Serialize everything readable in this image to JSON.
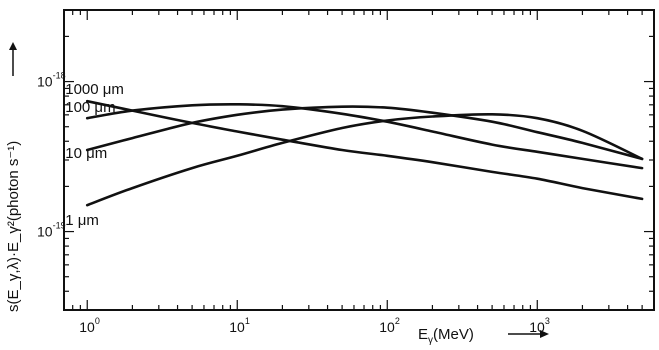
{
  "chart_data": {
    "type": "line",
    "x_scale": "log",
    "y_scale": "log",
    "xlim": [
      0.7,
      6000
    ],
    "ylim": [
      3e-20,
      3e-18
    ],
    "xlabel": "E_γ(MeV)",
    "xlabel_parts": {
      "base": "E",
      "sub": "γ",
      "rest": "(MeV)"
    },
    "ylabel": "s(E_γ,λ)·E_γ²(photon s⁻¹)",
    "x_ticks": [
      {
        "value": 1,
        "base": "10",
        "exp": "0"
      },
      {
        "value": 10,
        "base": "10",
        "exp": "1"
      },
      {
        "value": 100,
        "base": "10",
        "exp": "2"
      },
      {
        "value": 1000,
        "base": "10",
        "exp": "3"
      }
    ],
    "y_ticks": [
      {
        "value": 1e-19,
        "base": "10",
        "exp": "-19"
      },
      {
        "value": 1e-18,
        "base": "10",
        "exp": "-18"
      }
    ],
    "grid": false,
    "series": [
      {
        "name": "1000 μm",
        "label": "1000 μm",
        "x": [
          1,
          2,
          5,
          10,
          20,
          50,
          100,
          200,
          500,
          1000,
          2000,
          5000
        ],
        "y": [
          7.4e-19,
          6.4e-19,
          5.3e-19,
          4.65e-19,
          4.1e-19,
          3.5e-19,
          3.2e-19,
          2.9e-19,
          2.5e-19,
          2.25e-19,
          1.95e-19,
          1.65e-19
        ]
      },
      {
        "name": "100 μm",
        "label": "100 μm",
        "x": [
          1,
          2,
          5,
          10,
          20,
          50,
          100,
          200,
          500,
          1000,
          2000,
          5000
        ],
        "y": [
          5.7e-19,
          6.4e-19,
          6.95e-19,
          7.05e-19,
          6.85e-19,
          6.1e-19,
          5.4e-19,
          4.65e-19,
          3.8e-19,
          3.4e-19,
          3.05e-19,
          2.65e-19
        ]
      },
      {
        "name": "10 μm",
        "label": "10 μm",
        "x": [
          1,
          2,
          5,
          10,
          20,
          50,
          100,
          200,
          500,
          1000,
          2000,
          5000
        ],
        "y": [
          3.5e-19,
          4.2e-19,
          5.3e-19,
          6e-19,
          6.5e-19,
          6.8e-19,
          6.7e-19,
          6.2e-19,
          5.4e-19,
          4.6e-19,
          3.9e-19,
          3.05e-19
        ]
      },
      {
        "name": "1 μm",
        "label": "1 μm",
        "x": [
          1,
          2,
          5,
          10,
          20,
          50,
          100,
          200,
          500,
          1000,
          2000,
          5000
        ],
        "y": [
          1.5e-19,
          1.95e-19,
          2.65e-19,
          3.2e-19,
          3.9e-19,
          4.9e-19,
          5.5e-19,
          5.85e-19,
          6.05e-19,
          5.7e-19,
          4.7e-19,
          3.05e-19
        ]
      }
    ]
  }
}
